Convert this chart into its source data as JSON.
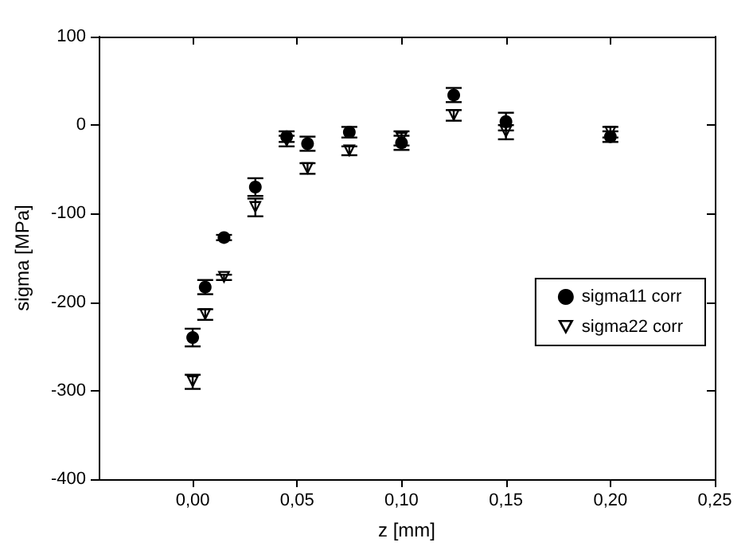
{
  "chart_data": {
    "type": "scatter",
    "xlabel": "z [mm]",
    "ylabel": "sigma [MPa]",
    "xlim": [
      -0.045,
      0.25
    ],
    "ylim": [
      -400,
      100
    ],
    "xticks": [
      {
        "value": 0,
        "label": "0,00"
      },
      {
        "value": 0.05,
        "label": "0,05"
      },
      {
        "value": 0.1,
        "label": "0,10"
      },
      {
        "value": 0.15,
        "label": "0,15"
      },
      {
        "value": 0.2,
        "label": "0,20"
      },
      {
        "value": 0.25,
        "label": "0,25"
      }
    ],
    "yticks": [
      -400,
      -300,
      -200,
      -100,
      0,
      100
    ],
    "legend": "right",
    "x": [
      0,
      0.006,
      0.015,
      0.03,
      0.045,
      0.055,
      0.075,
      0.1,
      0.125,
      0.15,
      0.2
    ],
    "series": [
      {
        "name": "sigma11 corr",
        "color": "#000000",
        "marker": "circle",
        "values": [
          -240,
          -183,
          -127,
          -70,
          -13,
          -21,
          -8,
          -20,
          34,
          4,
          -13
        ],
        "errors": [
          10,
          8,
          3,
          10,
          6,
          8,
          6,
          8,
          8,
          10,
          6
        ]
      },
      {
        "name": "sigma22 corr",
        "color": "#000000",
        "marker": "triangle",
        "values": [
          -290,
          -214,
          -172,
          -93,
          -18,
          -49,
          -29,
          -15,
          11,
          -8,
          -8
        ],
        "errors": [
          8,
          6,
          3,
          10,
          6,
          6,
          5,
          8,
          6,
          8,
          6
        ]
      }
    ]
  }
}
